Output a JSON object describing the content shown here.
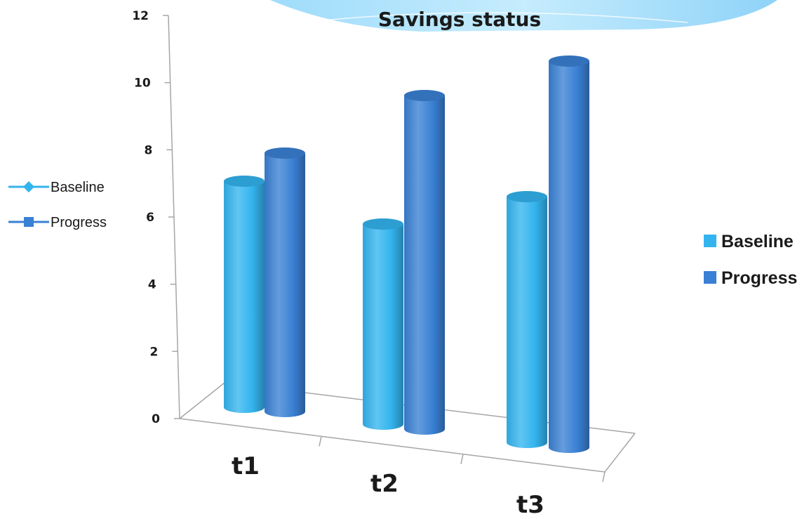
{
  "chart_data": {
    "type": "bar",
    "style": "3d-cylinder",
    "title": "Savings status",
    "categories": [
      "t1",
      "t2",
      "t3"
    ],
    "series": [
      {
        "name": "Baseline",
        "color": "#33b4ee",
        "values": [
          7,
          6,
          7
        ]
      },
      {
        "name": "Progress",
        "color": "#3a80d4",
        "values": [
          8,
          10,
          11
        ]
      }
    ],
    "ylim": [
      0,
      12
    ],
    "yticks": [
      0,
      2,
      4,
      6,
      8,
      10,
      12
    ],
    "grid": false,
    "legends": [
      {
        "position": "right",
        "marker": "square",
        "items": [
          "Baseline",
          "Progress"
        ]
      },
      {
        "position": "left",
        "marker": "line-with-marker",
        "items": [
          "Baseline",
          "Progress"
        ]
      }
    ]
  }
}
